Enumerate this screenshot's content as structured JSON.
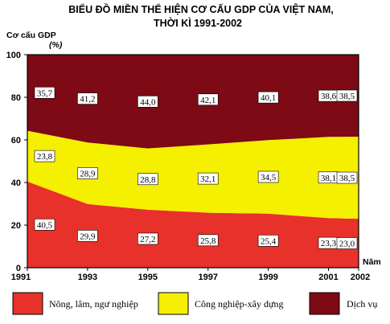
{
  "chart_data": {
    "type": "area",
    "stacked": "percent",
    "title_line1": "BIỂU ĐỒ MIỀN THỂ HIỆN CƠ CẤU GDP CỦA VIỆT NAM,",
    "title_line2": "THỜI KÌ 1991-2002",
    "ylabel": "Cơ cấu GDP",
    "yunit": "(%)",
    "xlabel": "Năm",
    "x": [
      1991,
      1993,
      1995,
      1997,
      1999,
      2001,
      2002
    ],
    "x_tick_labels": [
      "1991",
      "1993",
      "1995",
      "1997",
      "1999",
      "2001",
      "2002"
    ],
    "ylim": [
      0,
      100
    ],
    "y_ticks": [
      0,
      20,
      40,
      60,
      80,
      100
    ],
    "y_tick_labels": [
      "0",
      "20",
      "40",
      "60",
      "80",
      "100"
    ],
    "grid": false,
    "legend_position": "bottom",
    "series": [
      {
        "name": "Nông, lâm, ngư nghiệp",
        "color": "#e8312b",
        "values": [
          40.5,
          29.9,
          27.2,
          25.8,
          25.4,
          23.3,
          23.0
        ],
        "labels": [
          "40,5",
          "29,9",
          "27,2",
          "25,8",
          "25,4",
          "23,3",
          "23,0"
        ]
      },
      {
        "name": "Công nghiệp-xây dựng",
        "color": "#f5ef00",
        "values": [
          23.8,
          28.9,
          28.8,
          32.1,
          34.5,
          38.1,
          38.5
        ],
        "labels": [
          "23,8",
          "28,9",
          "28,8",
          "32,1",
          "34,5",
          "38,1",
          "38,5"
        ]
      },
      {
        "name": "Dịch vụ",
        "color": "#7d0a14",
        "values": [
          35.7,
          41.2,
          44.0,
          42.1,
          40.1,
          38.6,
          38.5
        ],
        "labels": [
          "35,7",
          "41,2",
          "44,0",
          "42,1",
          "40,1",
          "38,6",
          "38,5"
        ]
      }
    ]
  }
}
